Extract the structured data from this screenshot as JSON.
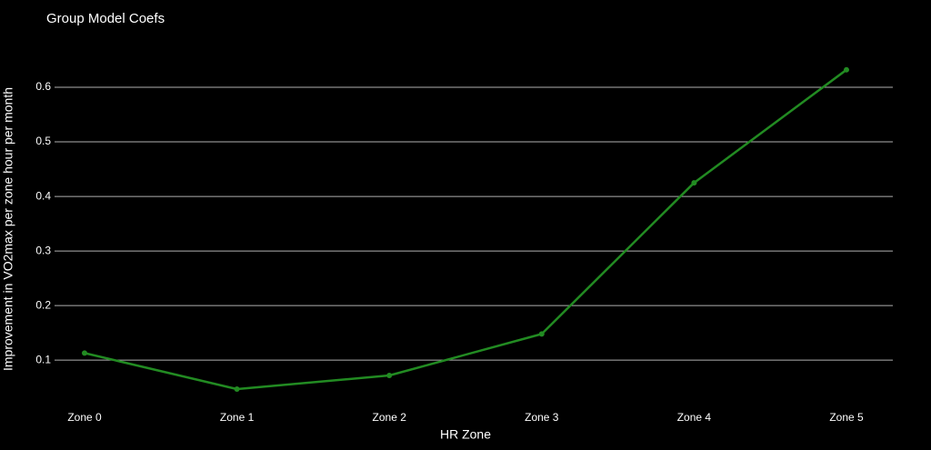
{
  "chart_data": {
    "type": "line",
    "title": "Group Model Coefs",
    "x_label": "HR Zone",
    "y_label": "Improvement in VO2max per zone hour per month",
    "categories": [
      "Zone 0",
      "Zone 1",
      "Zone 2",
      "Zone 3",
      "Zone 4",
      "Zone 5"
    ],
    "values": [
      0.113,
      0.047,
      0.072,
      0.148,
      0.425,
      0.632
    ],
    "color": "#228b22",
    "ylim": [
      0.027,
      0.66
    ],
    "yticks": [
      0.1,
      0.2,
      0.3,
      0.4,
      0.5,
      0.6
    ],
    "grid": true
  }
}
